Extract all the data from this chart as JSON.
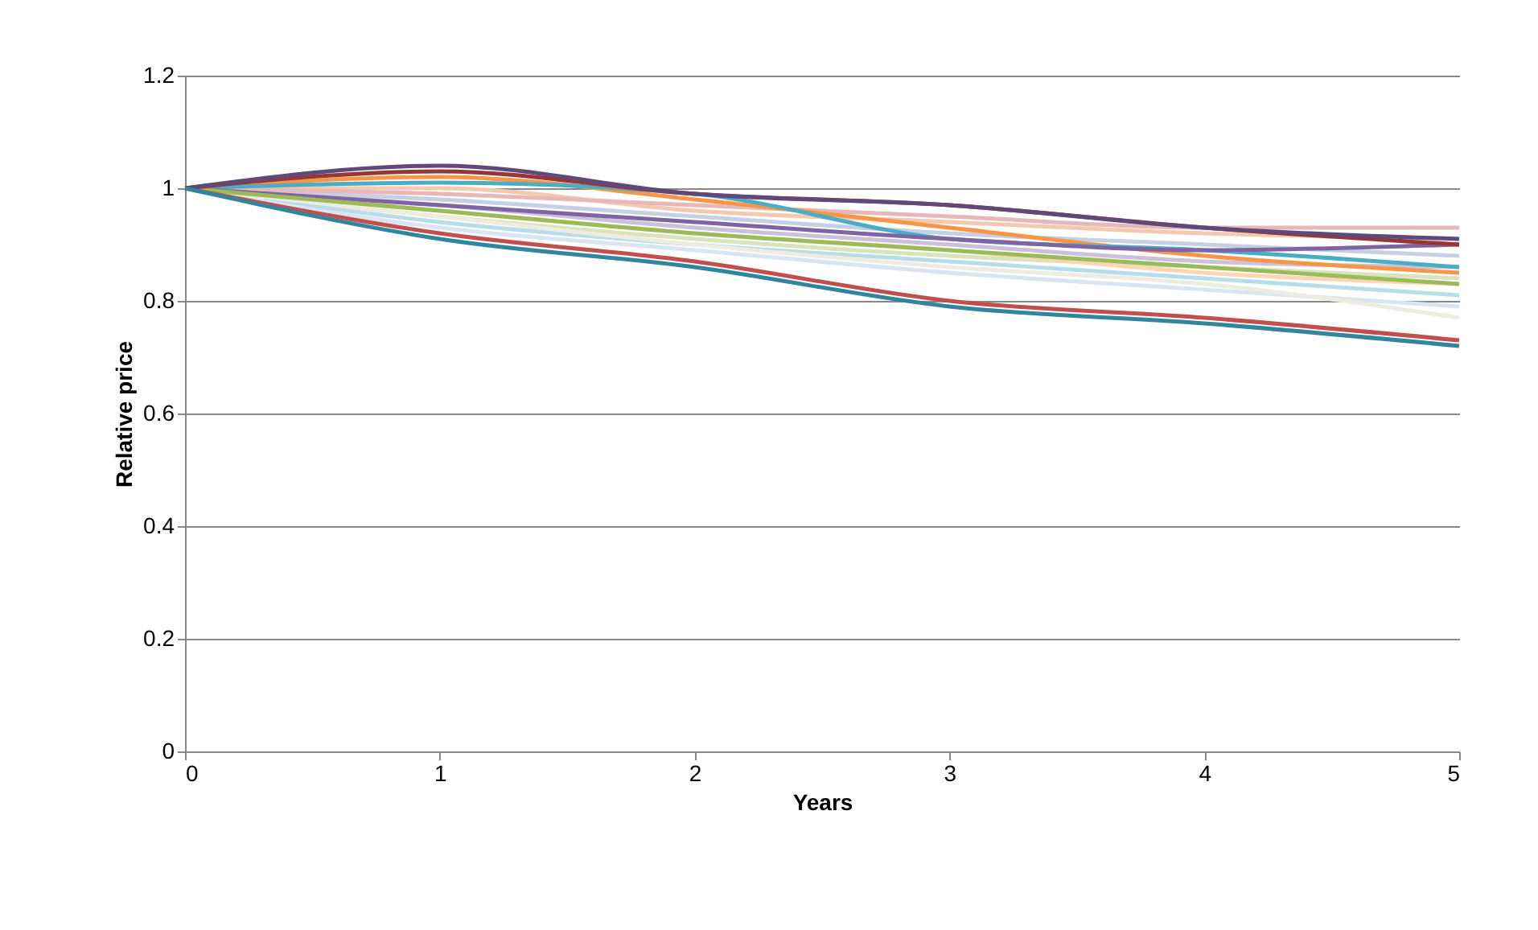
{
  "chart_data": {
    "type": "line",
    "xlabel": "Years",
    "ylabel": "Relative price",
    "x": [
      0,
      1,
      2,
      3,
      4,
      5
    ],
    "xlim": [
      0,
      5
    ],
    "xticks": [
      0,
      1,
      2,
      3,
      4,
      5
    ],
    "ylim": [
      0,
      1.2
    ],
    "yticks": [
      0,
      0.2,
      0.4,
      0.6,
      0.8,
      1,
      1.2
    ],
    "grid": "y",
    "legend": false,
    "marker": "none",
    "line_style": "solid",
    "series": [
      {
        "color": "#c6d0e4",
        "values": [
          1,
          0.98,
          0.95,
          0.92,
          0.9,
          0.88
        ]
      },
      {
        "color": "#f4c9b0",
        "values": [
          1,
          1.0,
          0.96,
          0.94,
          0.92,
          0.91
        ]
      },
      {
        "color": "#d7e4bd",
        "values": [
          1,
          0.95,
          0.91,
          0.88,
          0.86,
          0.84
        ]
      },
      {
        "color": "#ccc1da",
        "values": [
          1,
          0.97,
          0.93,
          0.9,
          0.87,
          0.86
        ]
      },
      {
        "color": "#b7dee8",
        "values": [
          1,
          0.94,
          0.9,
          0.87,
          0.84,
          0.81
        ]
      },
      {
        "color": "#fcd5b5",
        "values": [
          1,
          0.96,
          0.92,
          0.89,
          0.85,
          0.83
        ]
      },
      {
        "color": "#e6b9b8",
        "values": [
          1,
          0.99,
          0.97,
          0.95,
          0.93,
          0.93
        ]
      },
      {
        "color": "#dbe5f1",
        "values": [
          1,
          0.93,
          0.89,
          0.85,
          0.82,
          0.79
        ]
      },
      {
        "color": "#eeece1",
        "values": [
          1,
          0.95,
          0.9,
          0.86,
          0.83,
          0.77
        ]
      },
      {
        "color": "#f79646",
        "values": [
          1,
          1.02,
          0.98,
          0.93,
          0.88,
          0.85
        ]
      },
      {
        "color": "#4bacc6",
        "values": [
          1,
          1.01,
          0.99,
          0.91,
          0.89,
          0.86
        ]
      },
      {
        "color": "#8064a2",
        "values": [
          1,
          0.97,
          0.94,
          0.91,
          0.89,
          0.9
        ]
      },
      {
        "color": "#9bbb59",
        "values": [
          1,
          0.96,
          0.92,
          0.89,
          0.86,
          0.83
        ]
      },
      {
        "color": "#c0504d",
        "values": [
          1,
          0.92,
          0.87,
          0.8,
          0.77,
          0.73
        ]
      },
      {
        "color": "#953735",
        "values": [
          1,
          1.03,
          0.99,
          0.97,
          0.93,
          0.9
        ]
      },
      {
        "color": "#5f497a",
        "values": [
          1,
          1.04,
          0.99,
          0.97,
          0.93,
          0.91
        ]
      },
      {
        "color": "#31859c",
        "values": [
          1,
          0.91,
          0.86,
          0.79,
          0.76,
          0.72
        ]
      }
    ]
  }
}
